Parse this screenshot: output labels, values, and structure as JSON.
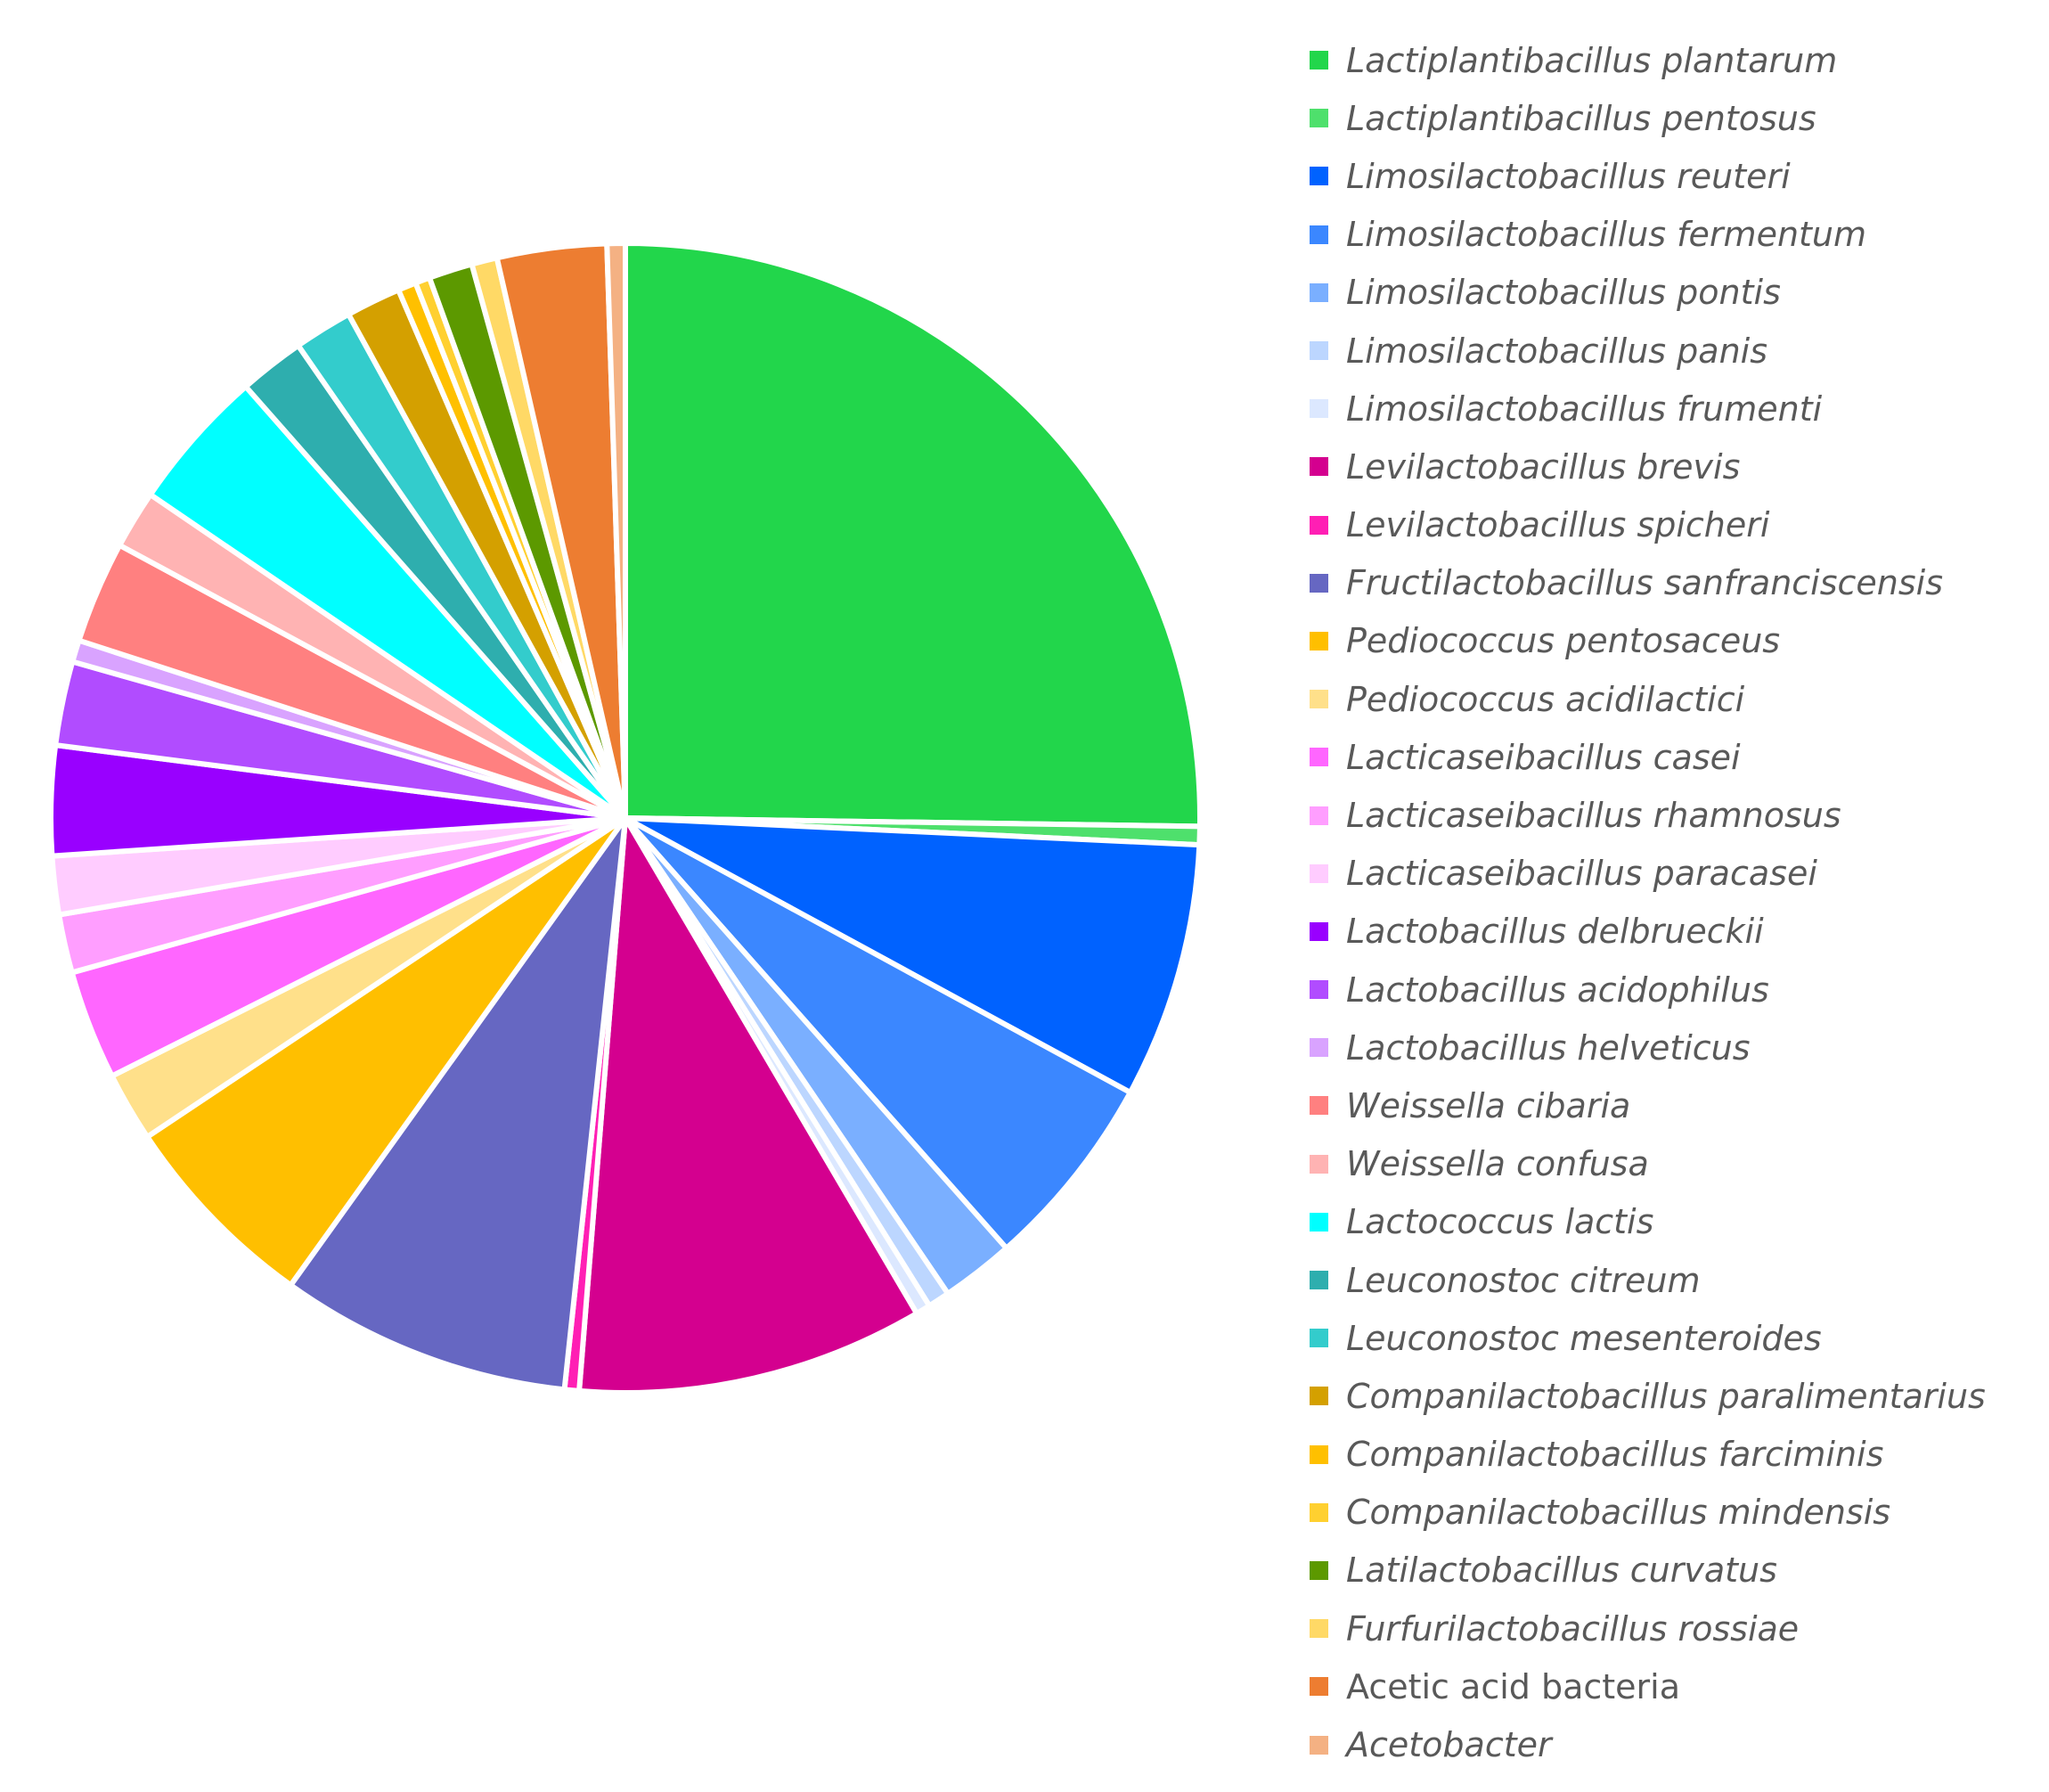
{
  "chart_data": {
    "type": "pie",
    "title": "",
    "legend_position": "right",
    "start_angle": "top",
    "direction": "clockwise",
    "slices": [
      {
        "label": "Lactiplantibacillus plantarum",
        "value": 24.6,
        "color": "#22d64b",
        "italic": true
      },
      {
        "label": "Lactiplantibacillus pentosus",
        "value": 0.5,
        "color": "#4ee06c",
        "italic": true
      },
      {
        "label": "Limosilactobacillus reuteri",
        "value": 7.0,
        "color": "#0062ff",
        "italic": true
      },
      {
        "label": "Limosilactobacillus fermentum",
        "value": 5.4,
        "color": "#3b87ff",
        "italic": true
      },
      {
        "label": "Limosilactobacillus pontis",
        "value": 2.0,
        "color": "#7aafff",
        "italic": true
      },
      {
        "label": "Limosilactobacillus panis",
        "value": 0.6,
        "color": "#bcd6ff",
        "italic": true
      },
      {
        "label": "Limosilactobacillus frumenti",
        "value": 0.4,
        "color": "#dce8ff",
        "italic": true
      },
      {
        "label": "Levilactobacillus brevis",
        "value": 9.5,
        "color": "#d4008f",
        "italic": true
      },
      {
        "label": "Levilactobacillus spicheri",
        "value": 0.4,
        "color": "#ff1fb4",
        "italic": true
      },
      {
        "label": "Fructilactobacillus sanfranciscensis",
        "value": 8.0,
        "color": "#6667c2",
        "italic": true
      },
      {
        "label": "Pediococcus pentosaceus",
        "value": 5.6,
        "color": "#ffbf00",
        "italic": true
      },
      {
        "label": "Pediococcus acidilactici",
        "value": 1.9,
        "color": "#ffe08a",
        "italic": true
      },
      {
        "label": "Lacticaseibacillus casei",
        "value": 3.0,
        "color": "#ff66ff",
        "italic": true
      },
      {
        "label": "Lacticaseibacillus rhamnosus",
        "value": 1.6,
        "color": "#ff9eff",
        "italic": true
      },
      {
        "label": "Lacticaseibacillus paracasei",
        "value": 1.6,
        "color": "#ffccff",
        "italic": true
      },
      {
        "label": "Lactobacillus delbrueckii",
        "value": 3.0,
        "color": "#9900ff",
        "italic": true
      },
      {
        "label": "Lactobacillus acidophilus",
        "value": 2.3,
        "color": "#b14cff",
        "italic": true
      },
      {
        "label": "Lactobacillus helveticus",
        "value": 0.6,
        "color": "#d9a3ff",
        "italic": true
      },
      {
        "label": "Weissella cibaria",
        "value": 2.8,
        "color": "#ff8080",
        "italic": true
      },
      {
        "label": "Weissella confusa",
        "value": 1.6,
        "color": "#ffb3b3",
        "italic": true
      },
      {
        "label": "Lactococcus lactis",
        "value": 3.9,
        "color": "#00ffff",
        "italic": true
      },
      {
        "label": "Leuconostoc citreum",
        "value": 1.8,
        "color": "#2eaeae",
        "italic": true
      },
      {
        "label": "Leuconostoc mesenteroides",
        "value": 1.6,
        "color": "#33cccc",
        "italic": true
      },
      {
        "label": "Companilactobacillus paralimentarius",
        "value": 1.5,
        "color": "#d4a000",
        "italic": true
      },
      {
        "label": "Companilactobacillus farciminis",
        "value": 0.5,
        "color": "#ffc000",
        "italic": true
      },
      {
        "label": "Companilactobacillus mindensis",
        "value": 0.4,
        "color": "#ffd030",
        "italic": true
      },
      {
        "label": "Latilactobacillus curvatus",
        "value": 1.2,
        "color": "#5c9900",
        "italic": true
      },
      {
        "label": "Furfurilactobacillus rossiae",
        "value": 0.7,
        "color": "#ffd966",
        "italic": true
      },
      {
        "label": "Acetic acid bacteria",
        "value": 3.0,
        "color": "#ed7d31",
        "italic": false
      },
      {
        "label": "Acetobacter",
        "value": 0.5,
        "color": "#f4b183",
        "italic": true
      }
    ]
  }
}
